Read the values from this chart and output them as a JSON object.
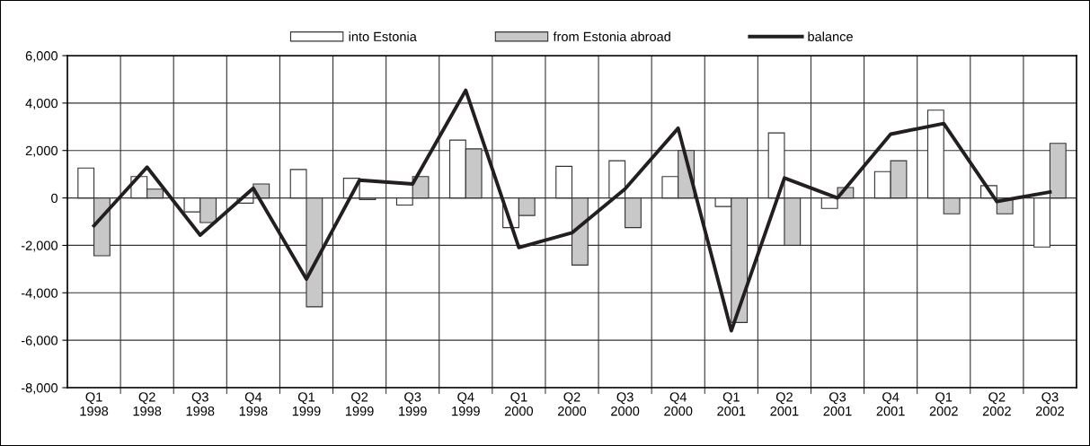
{
  "chart_data": {
    "type": "bar",
    "categories": [
      "Q1\n1998",
      "Q2\n1998",
      "Q3\n1998",
      "Q4\n1998",
      "Q1\n1999",
      "Q2\n1999",
      "Q3\n1999",
      "Q4\n1999",
      "Q1\n2000",
      "Q2\n2000",
      "Q3\n2000",
      "Q4\n2000",
      "Q1\n2001",
      "Q2\n2001",
      "Q3\n2001",
      "Q4\n2001",
      "Q1\n2002",
      "Q2\n2002",
      "Q3\n2002"
    ],
    "series": [
      {
        "name": "into Estonia",
        "color": "#ffffff",
        "values": [
          1260,
          900,
          -590,
          -220,
          1200,
          830,
          -300,
          2440,
          -1250,
          1330,
          1570,
          900,
          -360,
          2740,
          -440,
          1110,
          3700,
          520,
          -2070
        ]
      },
      {
        "name": "from Estonia abroad",
        "color": "#c8c8c8",
        "values": [
          -2440,
          370,
          -1040,
          590,
          -4590,
          -70,
          900,
          2070,
          -740,
          -2830,
          -1250,
          2000,
          -5250,
          -2000,
          440,
          1570,
          -670,
          -670,
          2300
        ]
      },
      {
        "name": "balance",
        "type": "line",
        "color": "#231f20",
        "values": [
          -1170,
          1300,
          -1570,
          410,
          -3420,
          750,
          590,
          4540,
          -2090,
          -1470,
          380,
          2940,
          -5600,
          840,
          0,
          2690,
          3140,
          -150,
          250
        ]
      }
    ],
    "ylim": [
      -8000,
      6000
    ],
    "yticks": [
      {
        "value": -8000,
        "label": "-8,000"
      },
      {
        "value": -6000,
        "label": "-6,000"
      },
      {
        "value": -4000,
        "label": "-4,000"
      },
      {
        "value": -2000,
        "label": "-2,000"
      },
      0,
      {
        "value": 2000,
        "label": "2,000"
      },
      {
        "value": 4000,
        "label": "4,000"
      },
      {
        "value": 6000,
        "label": "6,000"
      }
    ],
    "grid": true,
    "legend": "top",
    "marker": "none",
    "line_style": "solid"
  }
}
